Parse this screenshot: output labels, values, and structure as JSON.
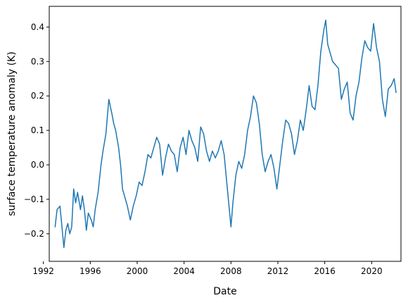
{
  "chart_data": {
    "type": "line",
    "xlabel": "Date",
    "ylabel": "surface temperature anomaly (K)",
    "xlim": [
      "1992-07-01",
      "2022-07-01"
    ],
    "ylim": [
      -0.28,
      0.46
    ],
    "xticks": [
      {
        "date": "1992-01-01",
        "label": "1992"
      },
      {
        "date": "1996-01-01",
        "label": "1996"
      },
      {
        "date": "2000-01-01",
        "label": "2000"
      },
      {
        "date": "2004-01-01",
        "label": "2004"
      },
      {
        "date": "2008-01-01",
        "label": "2008"
      },
      {
        "date": "2012-01-01",
        "label": "2012"
      },
      {
        "date": "2016-01-01",
        "label": "2016"
      },
      {
        "date": "2020-01-01",
        "label": "2020"
      }
    ],
    "yticks": [
      {
        "value": -0.2,
        "label": "−0.2"
      },
      {
        "value": -0.1,
        "label": "−0.1"
      },
      {
        "value": 0.0,
        "label": "0.0"
      },
      {
        "value": 0.1,
        "label": "0.1"
      },
      {
        "value": 0.2,
        "label": "0.2"
      },
      {
        "value": 0.3,
        "label": "0.3"
      },
      {
        "value": 0.4,
        "label": "0.4"
      }
    ],
    "grid": false,
    "series": [
      {
        "color": "#1f77b4",
        "points": [
          [
            "1993-01-01",
            -0.18
          ],
          [
            "1993-03-01",
            -0.13
          ],
          [
            "1993-06-01",
            -0.12
          ],
          [
            "1993-08-01",
            -0.18
          ],
          [
            "1993-10-01",
            -0.24
          ],
          [
            "1993-12-01",
            -0.19
          ],
          [
            "1994-02-01",
            -0.17
          ],
          [
            "1994-04-01",
            -0.2
          ],
          [
            "1994-06-01",
            -0.18
          ],
          [
            "1994-08-01",
            -0.07
          ],
          [
            "1994-10-01",
            -0.11
          ],
          [
            "1994-12-01",
            -0.08
          ],
          [
            "1995-03-01",
            -0.13
          ],
          [
            "1995-05-01",
            -0.09
          ],
          [
            "1995-07-01",
            -0.13
          ],
          [
            "1995-09-01",
            -0.19
          ],
          [
            "1995-11-01",
            -0.14
          ],
          [
            "1996-02-01",
            -0.16
          ],
          [
            "1996-04-01",
            -0.18
          ],
          [
            "1996-06-01",
            -0.13
          ],
          [
            "1996-09-01",
            -0.08
          ],
          [
            "1996-12-01",
            0.0
          ],
          [
            "1997-02-01",
            0.04
          ],
          [
            "1997-05-01",
            0.09
          ],
          [
            "1997-08-01",
            0.19
          ],
          [
            "1997-11-01",
            0.15
          ],
          [
            "1998-01-01",
            0.12
          ],
          [
            "1998-03-01",
            0.1
          ],
          [
            "1998-06-01",
            0.05
          ],
          [
            "1998-08-01",
            0.0
          ],
          [
            "1998-10-01",
            -0.07
          ],
          [
            "1998-12-01",
            -0.09
          ],
          [
            "1999-03-01",
            -0.12
          ],
          [
            "1999-06-01",
            -0.16
          ],
          [
            "1999-09-01",
            -0.12
          ],
          [
            "1999-12-01",
            -0.09
          ],
          [
            "2000-03-01",
            -0.05
          ],
          [
            "2000-06-01",
            -0.06
          ],
          [
            "2000-09-01",
            -0.02
          ],
          [
            "2000-12-01",
            0.03
          ],
          [
            "2001-03-01",
            0.02
          ],
          [
            "2001-06-01",
            0.05
          ],
          [
            "2001-09-01",
            0.08
          ],
          [
            "2001-12-01",
            0.06
          ],
          [
            "2002-03-01",
            -0.03
          ],
          [
            "2002-06-01",
            0.02
          ],
          [
            "2002-09-01",
            0.06
          ],
          [
            "2002-12-01",
            0.04
          ],
          [
            "2003-03-01",
            0.03
          ],
          [
            "2003-06-01",
            -0.02
          ],
          [
            "2003-09-01",
            0.05
          ],
          [
            "2003-12-01",
            0.08
          ],
          [
            "2004-03-01",
            0.03
          ],
          [
            "2004-06-01",
            0.1
          ],
          [
            "2004-09-01",
            0.07
          ],
          [
            "2004-12-01",
            0.05
          ],
          [
            "2005-03-01",
            0.01
          ],
          [
            "2005-06-01",
            0.11
          ],
          [
            "2005-09-01",
            0.09
          ],
          [
            "2005-12-01",
            0.04
          ],
          [
            "2006-03-01",
            0.01
          ],
          [
            "2006-06-01",
            0.04
          ],
          [
            "2006-09-01",
            0.02
          ],
          [
            "2006-12-01",
            0.04
          ],
          [
            "2007-03-01",
            0.07
          ],
          [
            "2007-06-01",
            0.03
          ],
          [
            "2007-09-01",
            -0.06
          ],
          [
            "2007-11-01",
            -0.12
          ],
          [
            "2008-01-01",
            -0.18
          ],
          [
            "2008-03-01",
            -0.11
          ],
          [
            "2008-06-01",
            -0.03
          ],
          [
            "2008-09-01",
            0.01
          ],
          [
            "2008-12-01",
            -0.01
          ],
          [
            "2009-03-01",
            0.03
          ],
          [
            "2009-06-01",
            0.1
          ],
          [
            "2009-09-01",
            0.14
          ],
          [
            "2009-12-01",
            0.2
          ],
          [
            "2010-03-01",
            0.18
          ],
          [
            "2010-06-01",
            0.12
          ],
          [
            "2010-09-01",
            0.03
          ],
          [
            "2010-12-01",
            -0.02
          ],
          [
            "2011-03-01",
            0.01
          ],
          [
            "2011-06-01",
            0.03
          ],
          [
            "2011-09-01",
            -0.01
          ],
          [
            "2011-12-01",
            -0.07
          ],
          [
            "2012-03-01",
            0.0
          ],
          [
            "2012-06-01",
            0.07
          ],
          [
            "2012-09-01",
            0.13
          ],
          [
            "2012-12-01",
            0.12
          ],
          [
            "2013-03-01",
            0.09
          ],
          [
            "2013-06-01",
            0.03
          ],
          [
            "2013-09-01",
            0.07
          ],
          [
            "2013-12-01",
            0.13
          ],
          [
            "2014-03-01",
            0.1
          ],
          [
            "2014-06-01",
            0.16
          ],
          [
            "2014-09-01",
            0.23
          ],
          [
            "2014-12-01",
            0.17
          ],
          [
            "2015-03-01",
            0.16
          ],
          [
            "2015-06-01",
            0.23
          ],
          [
            "2015-09-01",
            0.33
          ],
          [
            "2015-12-01",
            0.39
          ],
          [
            "2016-02-01",
            0.42
          ],
          [
            "2016-04-01",
            0.35
          ],
          [
            "2016-06-01",
            0.33
          ],
          [
            "2016-09-01",
            0.3
          ],
          [
            "2016-12-01",
            0.29
          ],
          [
            "2017-03-01",
            0.28
          ],
          [
            "2017-06-01",
            0.19
          ],
          [
            "2017-09-01",
            0.22
          ],
          [
            "2017-12-01",
            0.24
          ],
          [
            "2018-03-01",
            0.15
          ],
          [
            "2018-06-01",
            0.13
          ],
          [
            "2018-09-01",
            0.2
          ],
          [
            "2018-12-01",
            0.24
          ],
          [
            "2019-03-01",
            0.31
          ],
          [
            "2019-06-01",
            0.36
          ],
          [
            "2019-09-01",
            0.34
          ],
          [
            "2019-12-01",
            0.33
          ],
          [
            "2020-03-01",
            0.41
          ],
          [
            "2020-06-01",
            0.34
          ],
          [
            "2020-09-01",
            0.3
          ],
          [
            "2020-12-01",
            0.19
          ],
          [
            "2021-03-01",
            0.14
          ],
          [
            "2021-06-01",
            0.22
          ],
          [
            "2021-09-01",
            0.23
          ],
          [
            "2021-12-01",
            0.25
          ],
          [
            "2022-02-01",
            0.21
          ]
        ]
      }
    ]
  }
}
